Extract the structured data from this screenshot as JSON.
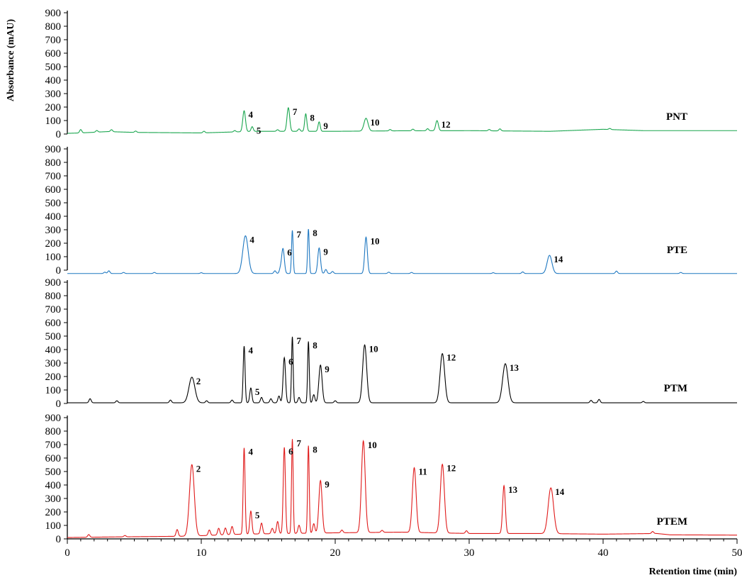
{
  "chart_data": {
    "type": "line",
    "xlabel": "Retention time (min)",
    "ylabel": "Absorbance (mAU)",
    "xlim": [
      0,
      50
    ],
    "x_ticks": [
      "0",
      "10",
      "20",
      "30",
      "40",
      "50"
    ],
    "ylim": [
      0,
      900
    ],
    "y_ticks": [
      "0",
      "100",
      "200",
      "300",
      "400",
      "500",
      "600",
      "700",
      "800",
      "900"
    ],
    "grid": false,
    "series": [
      {
        "name": "PNT",
        "color": "#1aa64f",
        "baseline": 10,
        "points": [
          [
            0,
            5
          ],
          [
            1,
            8
          ],
          [
            3,
            18
          ],
          [
            5,
            12
          ],
          [
            10,
            8
          ],
          [
            14,
            20
          ],
          [
            20,
            20
          ],
          [
            25,
            24
          ],
          [
            30,
            25
          ],
          [
            36,
            20
          ],
          [
            40,
            35
          ],
          [
            43,
            25
          ],
          [
            50,
            25
          ]
        ],
        "peaks": [
          {
            "label": "4",
            "rt": 13.2,
            "height": 155,
            "width": 0.1
          },
          {
            "label": "5",
            "rt": 13.8,
            "height": 35,
            "width": 0.08
          },
          {
            "label": "7",
            "rt": 16.5,
            "height": 175,
            "width": 0.1
          },
          {
            "label": "8",
            "rt": 17.8,
            "height": 130,
            "width": 0.08
          },
          {
            "label": "9",
            "rt": 18.8,
            "height": 70,
            "width": 0.08
          },
          {
            "label": "10",
            "rt": 22.3,
            "height": 95,
            "width": 0.15
          },
          {
            "label": "12",
            "rt": 27.6,
            "height": 75,
            "width": 0.1
          }
        ],
        "minor_peaks": [
          [
            1.0,
            25
          ],
          [
            2.2,
            12
          ],
          [
            3.3,
            15
          ],
          [
            5.1,
            10
          ],
          [
            10.2,
            12
          ],
          [
            12.5,
            10
          ],
          [
            15.7,
            12
          ],
          [
            17.3,
            18
          ],
          [
            24.1,
            10
          ],
          [
            25.8,
            12
          ],
          [
            26.9,
            15
          ],
          [
            31.5,
            10
          ],
          [
            32.3,
            15
          ],
          [
            40.5,
            8
          ]
        ]
      },
      {
        "name": "PTE",
        "color": "#1f78c1",
        "baseline": -25,
        "points": [
          [
            0,
            -25
          ],
          [
            50,
            -25
          ]
        ],
        "peaks": [
          {
            "label": "4",
            "rt": 13.3,
            "height": 280,
            "width": 0.2
          },
          {
            "label": "6",
            "rt": 16.1,
            "height": 185,
            "width": 0.1
          },
          {
            "label": "7",
            "rt": 16.8,
            "height": 320,
            "width": 0.06
          },
          {
            "label": "8",
            "rt": 18.0,
            "height": 330,
            "width": 0.06
          },
          {
            "label": "9",
            "rt": 18.8,
            "height": 190,
            "width": 0.1
          },
          {
            "label": "10",
            "rt": 22.3,
            "height": 270,
            "width": 0.1
          },
          {
            "label": "14",
            "rt": 36.0,
            "height": 135,
            "width": 0.18
          }
        ],
        "minor_peaks": [
          [
            2.8,
            10
          ],
          [
            3.1,
            20
          ],
          [
            4.2,
            8
          ],
          [
            6.5,
            8
          ],
          [
            10.0,
            6
          ],
          [
            15.5,
            20
          ],
          [
            15.9,
            30
          ],
          [
            19.3,
            30
          ],
          [
            19.8,
            15
          ],
          [
            24.0,
            10
          ],
          [
            25.7,
            8
          ],
          [
            31.8,
            6
          ],
          [
            34.0,
            12
          ],
          [
            41.0,
            18
          ],
          [
            45.8,
            8
          ]
        ]
      },
      {
        "name": "PTM",
        "color": "#000000",
        "baseline": 5,
        "points": [
          [
            0,
            5
          ],
          [
            50,
            5
          ]
        ],
        "peaks": [
          {
            "label": "2",
            "rt": 9.3,
            "height": 190,
            "width": 0.22
          },
          {
            "label": "4",
            "rt": 13.2,
            "height": 420,
            "width": 0.07
          },
          {
            "label": "5",
            "rt": 13.7,
            "height": 110,
            "width": 0.08
          },
          {
            "label": "6",
            "rt": 16.2,
            "height": 335,
            "width": 0.09
          },
          {
            "label": "7",
            "rt": 16.8,
            "height": 490,
            "width": 0.06
          },
          {
            "label": "8",
            "rt": 18.0,
            "height": 455,
            "width": 0.06
          },
          {
            "label": "9",
            "rt": 18.9,
            "height": 280,
            "width": 0.12
          },
          {
            "label": "10",
            "rt": 22.2,
            "height": 430,
            "width": 0.15
          },
          {
            "label": "12",
            "rt": 28.0,
            "height": 365,
            "width": 0.17
          },
          {
            "label": "13",
            "rt": 32.7,
            "height": 290,
            "width": 0.2
          }
        ],
        "minor_peaks": [
          [
            1.7,
            30
          ],
          [
            3.7,
            15
          ],
          [
            7.7,
            20
          ],
          [
            10.4,
            15
          ],
          [
            12.3,
            20
          ],
          [
            14.5,
            40
          ],
          [
            15.2,
            30
          ],
          [
            15.8,
            50
          ],
          [
            17.3,
            40
          ],
          [
            18.4,
            60
          ],
          [
            20.0,
            15
          ],
          [
            39.1,
            18
          ],
          [
            39.7,
            25
          ],
          [
            43.0,
            10
          ]
        ]
      },
      {
        "name": "PTEM",
        "color": "#e01a1a",
        "baseline": 10,
        "points": [
          [
            0,
            10
          ],
          [
            4,
            15
          ],
          [
            9,
            20
          ],
          [
            13,
            35
          ],
          [
            20,
            45
          ],
          [
            25,
            50
          ],
          [
            30,
            40
          ],
          [
            35,
            40
          ],
          [
            40,
            35
          ],
          [
            44,
            40
          ],
          [
            45,
            30
          ],
          [
            50,
            28
          ]
        ],
        "peaks": [
          {
            "label": "2",
            "rt": 9.3,
            "height": 530,
            "width": 0.18
          },
          {
            "label": "4",
            "rt": 13.2,
            "height": 640,
            "width": 0.07
          },
          {
            "label": "5",
            "rt": 13.7,
            "height": 170,
            "width": 0.08
          },
          {
            "label": "6",
            "rt": 16.2,
            "height": 640,
            "width": 0.08
          },
          {
            "label": "7",
            "rt": 16.8,
            "height": 700,
            "width": 0.06
          },
          {
            "label": "8",
            "rt": 18.0,
            "height": 650,
            "width": 0.06
          },
          {
            "label": "9",
            "rt": 18.9,
            "height": 390,
            "width": 0.12
          },
          {
            "label": "10",
            "rt": 22.1,
            "height": 680,
            "width": 0.14
          },
          {
            "label": "11",
            "rt": 25.9,
            "height": 480,
            "width": 0.14
          },
          {
            "label": "12",
            "rt": 28.0,
            "height": 510,
            "width": 0.15
          },
          {
            "label": "13",
            "rt": 32.6,
            "height": 355,
            "width": 0.1
          },
          {
            "label": "14",
            "rt": 36.1,
            "height": 340,
            "width": 0.2
          }
        ],
        "minor_peaks": [
          [
            1.6,
            20
          ],
          [
            4.3,
            10
          ],
          [
            8.2,
            50
          ],
          [
            10.6,
            40
          ],
          [
            11.3,
            50
          ],
          [
            11.8,
            50
          ],
          [
            12.3,
            60
          ],
          [
            14.5,
            80
          ],
          [
            15.3,
            40
          ],
          [
            15.7,
            90
          ],
          [
            17.3,
            60
          ],
          [
            18.4,
            70
          ],
          [
            20.5,
            20
          ],
          [
            23.5,
            15
          ],
          [
            29.8,
            20
          ],
          [
            43.7,
            15
          ]
        ]
      }
    ]
  }
}
